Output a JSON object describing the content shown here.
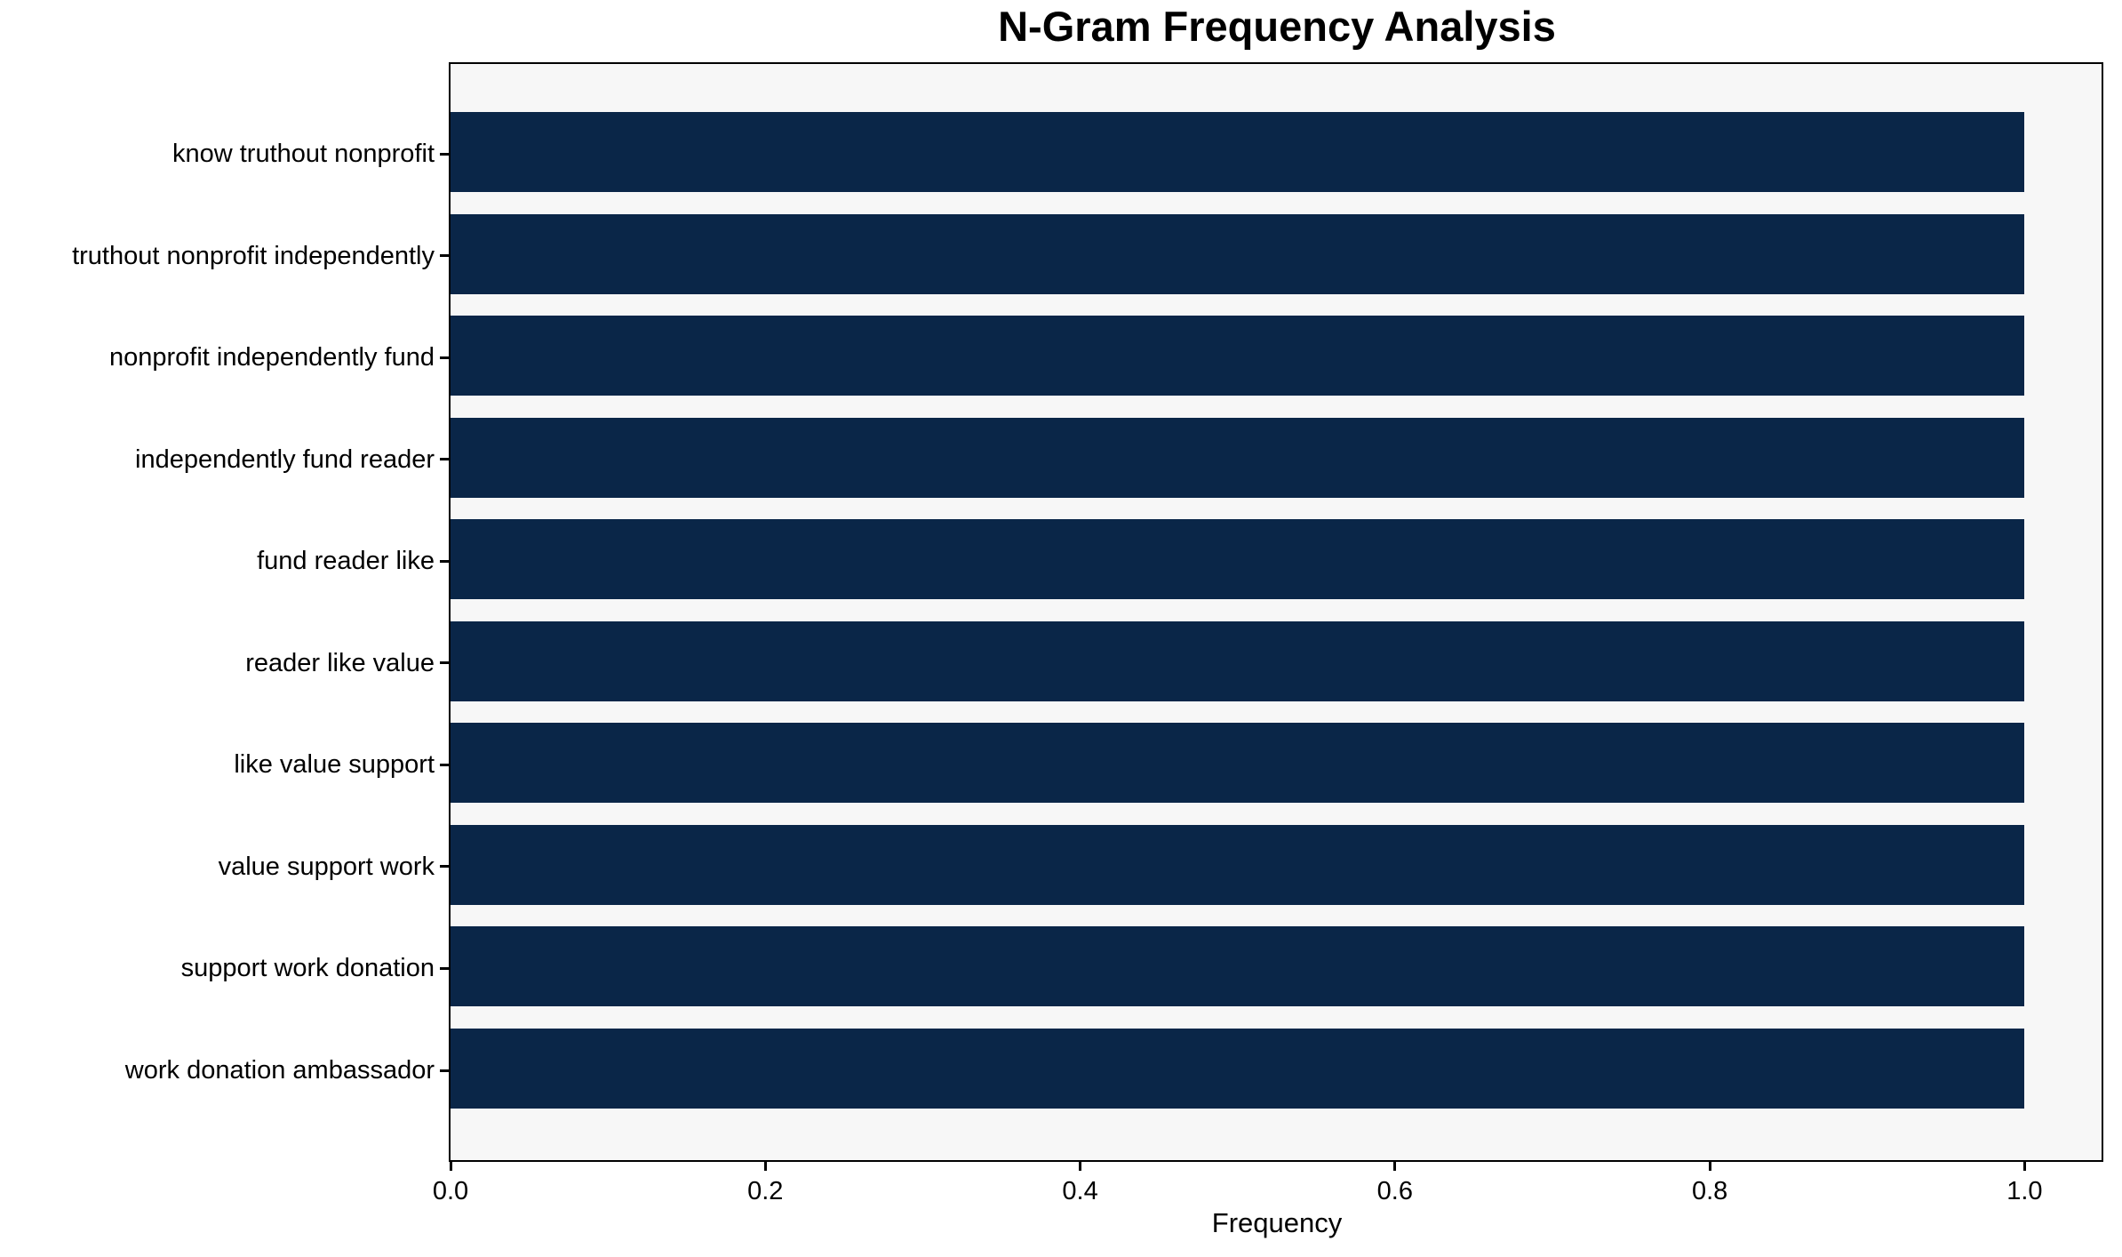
{
  "chart_data": {
    "type": "bar",
    "orientation": "horizontal",
    "title": "N-Gram Frequency Analysis",
    "xlabel": "Frequency",
    "ylabel": "",
    "categories": [
      "know truthout nonprofit",
      "truthout nonprofit independently",
      "nonprofit independently fund",
      "independently fund reader",
      "fund reader like",
      "reader like value",
      "like value support",
      "value support work",
      "support work donation",
      "work donation ambassador"
    ],
    "values": [
      1.0,
      1.0,
      1.0,
      1.0,
      1.0,
      1.0,
      1.0,
      1.0,
      1.0,
      1.0
    ],
    "xlim": [
      0,
      1.05
    ],
    "xticks": [
      0.0,
      0.2,
      0.4,
      0.6,
      0.8,
      1.0
    ],
    "xtick_labels": [
      "0.0",
      "0.2",
      "0.4",
      "0.6",
      "0.8",
      "1.0"
    ],
    "grid": false,
    "legend": null,
    "colors": {
      "bar": "#0a2648",
      "plot_bg": "#f7f7f7",
      "figure_bg": "#ffffff",
      "spine": "#000000",
      "text": "#000000"
    }
  }
}
